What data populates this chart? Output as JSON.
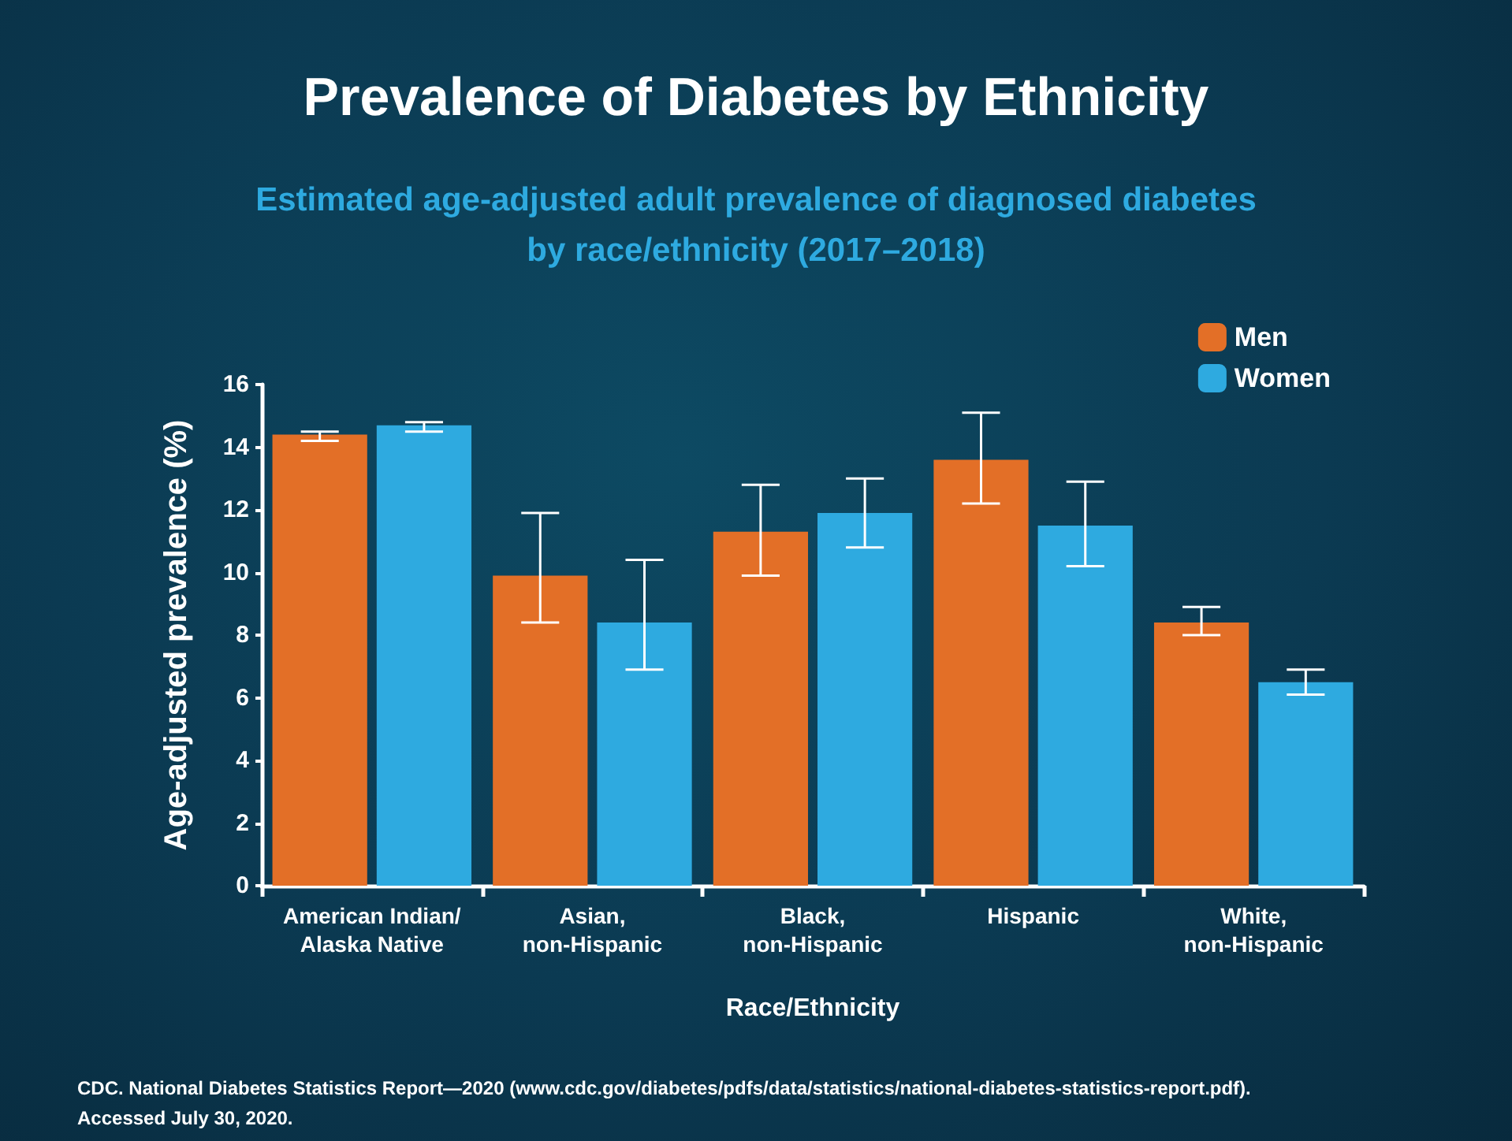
{
  "chart_data": {
    "type": "bar",
    "title": "Prevalence of Diabetes by Ethnicity",
    "subtitle": "Estimated age-adjusted adult prevalence of diagnosed diabetes\nby race/ethnicity (2017–2018)",
    "xlabel": "Race/Ethnicity",
    "ylabel": "Age-adjusted prevalence (%)",
    "categories": [
      "American Indian/\nAlaska Native",
      "Asian,\nnon-Hispanic",
      "Black,\nnon-Hispanic",
      "Hispanic",
      "White,\nnon-Hispanic"
    ],
    "series": [
      {
        "name": "Men",
        "color": "#e36f27",
        "values": [
          14.4,
          9.9,
          11.3,
          13.6,
          8.4
        ],
        "errors": [
          [
            14.2,
            14.5
          ],
          [
            8.4,
            11.9
          ],
          [
            9.9,
            12.8
          ],
          [
            12.2,
            15.1
          ],
          [
            8.0,
            8.9
          ]
        ]
      },
      {
        "name": "Women",
        "color": "#2eaae0",
        "values": [
          14.7,
          8.4,
          11.9,
          11.5,
          6.5
        ],
        "errors": [
          [
            14.5,
            14.8
          ],
          [
            6.9,
            10.4
          ],
          [
            10.8,
            13.0
          ],
          [
            10.2,
            12.9
          ],
          [
            6.1,
            6.9
          ]
        ]
      }
    ],
    "ylim": [
      0,
      16
    ],
    "yticks": [
      0,
      2,
      4,
      6,
      8,
      10,
      12,
      14,
      16
    ],
    "grid": false,
    "legend": "top right",
    "annotations": [
      "CDC. National Diabetes Statistics Report—2020 (www.cdc.gov/diabetes/pdfs/data/statistics/national-diabetes-statistics-report.pdf).\nAccessed July 30, 2020."
    ]
  }
}
